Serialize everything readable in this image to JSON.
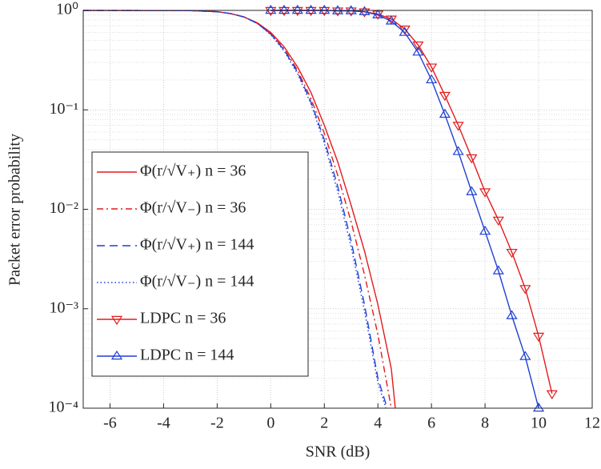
{
  "chart_data": {
    "type": "line",
    "x_label": "SNR (dB)",
    "y_label": "Packet error probability",
    "xlim": [
      -7,
      12
    ],
    "xticks": [
      -6,
      -4,
      -2,
      0,
      2,
      4,
      6,
      8,
      10,
      12
    ],
    "ylim": [
      0.0001,
      1
    ],
    "y_log": true,
    "yticks": [
      {
        "value": 0.0001,
        "label": "10⁻⁴"
      },
      {
        "value": 0.001,
        "label": "10⁻³"
      },
      {
        "value": 0.01,
        "label": "10⁻²"
      },
      {
        "value": 0.1,
        "label": "10⁻¹"
      },
      {
        "value": 1,
        "label": "10⁰"
      }
    ],
    "grid": true,
    "minor_grid": true,
    "legend_position": "lower left",
    "series": [
      {
        "name": "Φ(r/√V₊) n = 36",
        "color": "#e41a1c",
        "line_style": "solid",
        "x": [
          -7,
          -3,
          -2,
          -1.5,
          -1,
          -0.5,
          0,
          0.5,
          1,
          1.5,
          2,
          2.5,
          3,
          3.5,
          4,
          4.5,
          4.65
        ],
        "values": [
          1,
          0.995,
          0.97,
          0.93,
          0.86,
          0.75,
          0.6,
          0.43,
          0.27,
          0.15,
          0.07,
          0.03,
          0.011,
          0.0038,
          0.0011,
          0.00025,
          0.0001
        ]
      },
      {
        "name": "Φ(r/√V₋) n = 36",
        "color": "#e41a1c",
        "line_style": "dashdot",
        "x": [
          -7,
          -3,
          -2,
          -1.5,
          -1,
          -0.5,
          0,
          0.5,
          1,
          1.5,
          2,
          2.5,
          3,
          3.5,
          4,
          4.5
        ],
        "values": [
          1,
          0.995,
          0.97,
          0.93,
          0.86,
          0.74,
          0.58,
          0.41,
          0.25,
          0.13,
          0.058,
          0.022,
          0.0075,
          0.0022,
          0.00055,
          0.0001
        ]
      },
      {
        "name": "Φ(r/√V₊) n = 144",
        "color": "#1f3fd6",
        "line_style": "dashed",
        "x": [
          -7,
          -3,
          -2,
          -1.5,
          -1,
          -0.5,
          0,
          0.5,
          1,
          1.5,
          2,
          2.5,
          3,
          3.5,
          4,
          4.35
        ],
        "values": [
          1,
          0.995,
          0.97,
          0.93,
          0.86,
          0.74,
          0.58,
          0.4,
          0.24,
          0.12,
          0.05,
          0.017,
          0.0048,
          0.0011,
          0.0002,
          0.0001
        ]
      },
      {
        "name": "Φ(r/√V₋) n = 144",
        "color": "#1f3fd6",
        "line_style": "dotted",
        "x": [
          -7,
          -3,
          -2,
          -1.5,
          -1,
          -0.5,
          0,
          0.5,
          1,
          1.5,
          2,
          2.5,
          3,
          3.5,
          4,
          4.3
        ],
        "values": [
          1,
          0.995,
          0.97,
          0.93,
          0.86,
          0.74,
          0.57,
          0.39,
          0.23,
          0.115,
          0.046,
          0.015,
          0.0042,
          0.00095,
          0.00018,
          0.0001
        ]
      },
      {
        "name": "LDPC n = 36",
        "color": "#e41a1c",
        "line_style": "solid",
        "marker": "triangle-down",
        "x": [
          0,
          0.5,
          1,
          1.5,
          2,
          2.5,
          3,
          3.5,
          4,
          4.5,
          5,
          5.5,
          6,
          6.5,
          7,
          7.5,
          8,
          8.5,
          9,
          9.5,
          10,
          10.5
        ],
        "values": [
          1,
          1,
          1,
          1,
          1,
          0.99,
          0.99,
          0.97,
          0.92,
          0.82,
          0.65,
          0.45,
          0.27,
          0.14,
          0.07,
          0.033,
          0.015,
          0.0078,
          0.0037,
          0.0016,
          0.00053,
          0.00014
        ]
      },
      {
        "name": "LDPC n = 144",
        "color": "#1f3fd6",
        "line_style": "solid",
        "marker": "triangle-up",
        "x": [
          0,
          0.5,
          1,
          1.5,
          2,
          2.5,
          3,
          3.5,
          4,
          4.5,
          5,
          5.5,
          6,
          6.5,
          7,
          7.5,
          8,
          8.5,
          9,
          9.5,
          10
        ],
        "values": [
          1,
          1,
          1,
          1,
          1,
          0.99,
          0.99,
          0.97,
          0.9,
          0.78,
          0.6,
          0.38,
          0.2,
          0.09,
          0.038,
          0.015,
          0.006,
          0.0024,
          0.00085,
          0.00033,
          0.0001
        ]
      }
    ]
  }
}
